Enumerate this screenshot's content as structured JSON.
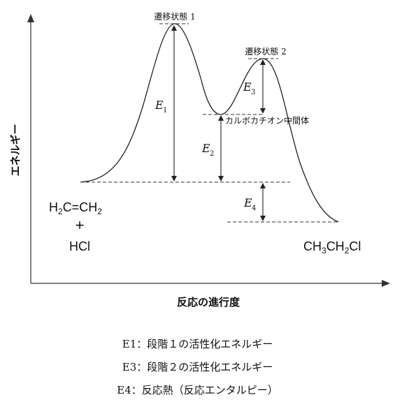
{
  "diagram": {
    "y_axis_label": "エネルギー",
    "x_axis_label": "反応の進行度",
    "transition_state_1": "遷移状態 1",
    "transition_state_2": "遷移状態 2",
    "intermediate": "カルボカチオン中間体",
    "e1": {
      "letter": "E",
      "sub": "1"
    },
    "e2": {
      "letter": "E",
      "sub": "2"
    },
    "e3": {
      "letter": "E",
      "sub": "3"
    },
    "e4": {
      "letter": "E",
      "sub": "4"
    },
    "reactant_line1": {
      "a": "H",
      "a_sub": "2",
      "b": "C=CH",
      "b_sub": "2"
    },
    "reactant_plus": "+",
    "reactant_line3": "HCl",
    "product": {
      "a": "CH",
      "a_sub": "3",
      "b": "CH",
      "b_sub": "2",
      "c": "Cl"
    }
  },
  "legend": {
    "line1": "E1：段階１の活性化エネルギー",
    "line2": "E3：段階２の活性化エネルギー",
    "line3": "E4：反応熱（反応エンタルピー）"
  }
}
